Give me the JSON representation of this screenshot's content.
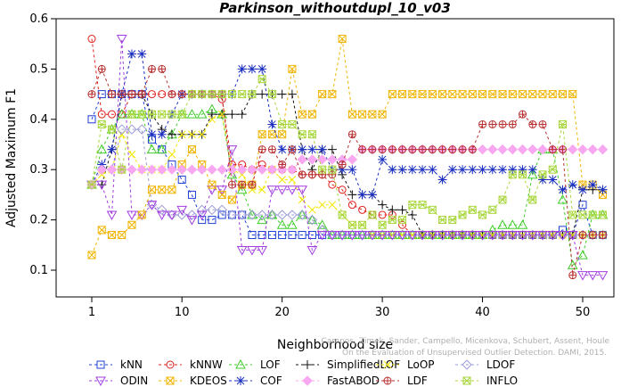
{
  "chart_data": {
    "type": "line",
    "title": "Parkinson_withoutdupl_10_v03",
    "xlabel": "Neighborhood size",
    "ylabel": "Adjusted Maximum F1",
    "xlim": [
      1,
      52
    ],
    "ylim": [
      0.075,
      0.6
    ],
    "xticks": [
      1,
      10,
      20,
      30,
      40,
      50
    ],
    "yticks": [
      0.1,
      0.2,
      0.3,
      0.4,
      0.5,
      0.6
    ],
    "grid": false,
    "legend_position": "bottom",
    "credit": "Campos, Zimek, Sander, Campello, Micenkova, Schubert, Assent, Houle\nOn the Evaluation of Unsupervised Outlier Detection. DAMI, 2015.",
    "x": [
      1,
      2,
      3,
      4,
      5,
      6,
      7,
      8,
      9,
      10,
      11,
      12,
      13,
      14,
      15,
      16,
      17,
      18,
      19,
      20,
      21,
      22,
      23,
      24,
      25,
      26,
      27,
      28,
      29,
      30,
      31,
      32,
      33,
      34,
      35,
      36,
      37,
      38,
      39,
      40,
      41,
      42,
      43,
      44,
      45,
      46,
      47,
      48,
      49,
      50,
      51,
      52
    ],
    "series": [
      {
        "name": "kNN",
        "color": "#1f3fd6",
        "marker": "square",
        "values": [
          0.4,
          0.45,
          0.45,
          0.45,
          0.45,
          0.45,
          0.36,
          0.34,
          0.31,
          0.28,
          0.25,
          0.2,
          0.2,
          0.21,
          0.21,
          0.21,
          0.17,
          0.17,
          0.17,
          0.17,
          0.17,
          0.17,
          0.17,
          0.17,
          0.17,
          0.17,
          0.17,
          0.17,
          0.17,
          0.17,
          0.17,
          0.17,
          0.17,
          0.17,
          0.17,
          0.17,
          0.17,
          0.17,
          0.17,
          0.17,
          0.17,
          0.17,
          0.17,
          0.17,
          0.17,
          0.17,
          0.17,
          0.18,
          0.17,
          0.23,
          0.17,
          0.17
        ]
      },
      {
        "name": "kNNW",
        "color": "#e0201b",
        "marker": "circle",
        "values": [
          0.56,
          0.41,
          0.41,
          0.41,
          0.45,
          0.45,
          0.45,
          0.45,
          0.45,
          0.45,
          0.45,
          0.45,
          0.45,
          0.44,
          0.31,
          0.31,
          0.3,
          0.31,
          0.3,
          0.3,
          0.3,
          0.29,
          0.29,
          0.29,
          0.27,
          0.26,
          0.23,
          0.22,
          0.21,
          0.21,
          0.21,
          0.19,
          0.17,
          0.17,
          0.17,
          0.17,
          0.17,
          0.17,
          0.17,
          0.17,
          0.17,
          0.17,
          0.17,
          0.17,
          0.17,
          0.17,
          0.17,
          0.17,
          0.17,
          0.17,
          0.17,
          0.17
        ]
      },
      {
        "name": "LOF",
        "color": "#3fcc2a",
        "marker": "triangle",
        "values": [
          0.27,
          0.34,
          0.38,
          0.41,
          0.41,
          0.41,
          0.34,
          0.34,
          0.37,
          0.41,
          0.41,
          0.41,
          0.42,
          0.41,
          0.29,
          0.26,
          0.21,
          0.2,
          0.21,
          0.19,
          0.19,
          0.21,
          0.2,
          0.19,
          0.17,
          0.17,
          0.17,
          0.17,
          0.17,
          0.17,
          0.17,
          0.17,
          0.17,
          0.17,
          0.17,
          0.17,
          0.17,
          0.17,
          0.17,
          0.17,
          0.18,
          0.19,
          0.19,
          0.19,
          0.29,
          0.34,
          0.34,
          0.24,
          0.11,
          0.13,
          0.21,
          0.21
        ]
      },
      {
        "name": "SimplifiedLOF",
        "color": "#111111",
        "marker": "plus",
        "values": [
          0.27,
          0.27,
          0.34,
          0.45,
          0.45,
          0.45,
          0.41,
          0.38,
          0.37,
          0.37,
          0.37,
          0.37,
          0.41,
          0.41,
          0.41,
          0.41,
          0.45,
          0.45,
          0.45,
          0.45,
          0.45,
          0.34,
          0.3,
          0.34,
          0.34,
          0.29,
          0.25,
          0.25,
          0.25,
          0.23,
          0.22,
          0.22,
          0.21,
          0.17,
          0.17,
          0.17,
          0.17,
          0.17,
          0.17,
          0.17,
          0.17,
          0.17,
          0.17,
          0.17,
          0.17,
          0.17,
          0.17,
          0.17,
          0.17,
          0.26,
          0.26,
          0.26
        ]
      },
      {
        "name": "LoOP",
        "color": "#f2e600",
        "marker": "x",
        "values": [
          0.27,
          0.29,
          0.3,
          0.37,
          0.33,
          0.3,
          0.3,
          0.3,
          0.33,
          0.37,
          0.37,
          0.37,
          0.4,
          0.41,
          0.3,
          0.29,
          0.26,
          0.26,
          0.3,
          0.28,
          0.28,
          0.24,
          0.22,
          0.23,
          0.23,
          0.21,
          0.19,
          0.19,
          0.17,
          0.17,
          0.17,
          0.17,
          0.17,
          0.17,
          0.17,
          0.17,
          0.17,
          0.17,
          0.17,
          0.17,
          0.17,
          0.17,
          0.17,
          0.17,
          0.17,
          0.17,
          0.17,
          0.17,
          0.17,
          0.17,
          0.17,
          0.17
        ]
      },
      {
        "name": "LDOF",
        "color": "#9a9ad8",
        "marker": "diamond",
        "values": [
          0.27,
          0.3,
          0.3,
          0.38,
          0.38,
          0.38,
          0.23,
          0.22,
          0.21,
          0.21,
          0.21,
          0.22,
          0.22,
          0.22,
          0.21,
          0.21,
          0.21,
          0.21,
          0.21,
          0.21,
          0.21,
          0.21,
          0.2,
          0.18,
          0.17,
          0.17,
          0.17,
          0.17,
          0.17,
          0.17,
          0.17,
          0.17,
          0.17,
          0.17,
          0.17,
          0.17,
          0.17,
          0.17,
          0.17,
          0.17,
          0.17,
          0.17,
          0.17,
          0.17,
          0.17,
          0.17,
          0.17,
          0.17,
          0.17,
          0.17,
          0.17,
          0.17
        ]
      },
      {
        "name": "ODIN",
        "color": "#a23de0",
        "marker": "triangle-down",
        "values": [
          0.27,
          0.27,
          0.21,
          0.56,
          0.21,
          0.21,
          0.23,
          0.21,
          0.21,
          0.22,
          0.2,
          0.21,
          0.26,
          0.26,
          0.34,
          0.14,
          0.14,
          0.14,
          0.26,
          0.26,
          0.26,
          0.26,
          0.14,
          0.17,
          0.17,
          0.17,
          0.17,
          0.17,
          0.17,
          0.17,
          0.17,
          0.17,
          0.17,
          0.17,
          0.17,
          0.17,
          0.17,
          0.17,
          0.17,
          0.17,
          0.17,
          0.17,
          0.17,
          0.17,
          0.17,
          0.17,
          0.17,
          0.17,
          0.17,
          0.09,
          0.09,
          0.09
        ]
      },
      {
        "name": "KDEOS",
        "color": "#f0b400",
        "marker": "square-x",
        "values": [
          0.13,
          0.18,
          0.17,
          0.17,
          0.19,
          0.21,
          0.26,
          0.26,
          0.26,
          0.31,
          0.34,
          0.31,
          0.27,
          0.25,
          0.24,
          0.27,
          0.27,
          0.37,
          0.37,
          0.37,
          0.5,
          0.41,
          0.41,
          0.45,
          0.45,
          0.56,
          0.41,
          0.41,
          0.41,
          0.41,
          0.45,
          0.45,
          0.45,
          0.45,
          0.45,
          0.45,
          0.45,
          0.45,
          0.45,
          0.45,
          0.45,
          0.45,
          0.45,
          0.45,
          0.45,
          0.45,
          0.45,
          0.45,
          0.45,
          0.27,
          0.27,
          0.25
        ]
      },
      {
        "name": "COF",
        "color": "#1a2fc0",
        "marker": "star",
        "values": [
          0.27,
          0.31,
          0.34,
          0.45,
          0.53,
          0.53,
          0.37,
          0.37,
          0.41,
          0.45,
          0.45,
          0.45,
          0.45,
          0.45,
          0.45,
          0.5,
          0.5,
          0.5,
          0.39,
          0.34,
          0.34,
          0.34,
          0.34,
          0.34,
          0.3,
          0.3,
          0.3,
          0.25,
          0.25,
          0.32,
          0.3,
          0.3,
          0.3,
          0.3,
          0.3,
          0.28,
          0.3,
          0.3,
          0.3,
          0.3,
          0.3,
          0.3,
          0.3,
          0.3,
          0.3,
          0.28,
          0.28,
          0.26,
          0.27,
          0.26,
          0.27,
          0.26
        ]
      },
      {
        "name": "FastABOD",
        "color": "#f7a8f0",
        "marker": "diamond-filled",
        "values": [
          0.27,
          0.3,
          0.3,
          0.3,
          0.3,
          0.3,
          0.3,
          0.3,
          0.3,
          0.3,
          0.3,
          0.3,
          0.3,
          0.3,
          0.3,
          0.3,
          0.3,
          0.3,
          0.3,
          0.3,
          0.3,
          0.32,
          0.32,
          0.32,
          0.32,
          0.32,
          0.32,
          0.34,
          0.34,
          0.34,
          0.34,
          0.34,
          0.34,
          0.34,
          0.34,
          0.34,
          0.34,
          0.34,
          0.34,
          0.34,
          0.34,
          0.34,
          0.34,
          0.34,
          0.34,
          0.34,
          0.34,
          0.34,
          0.34,
          0.34,
          0.34,
          0.34
        ]
      },
      {
        "name": "LDF",
        "color": "#b83030",
        "marker": "circle-plus",
        "values": [
          0.45,
          0.5,
          0.45,
          0.45,
          0.45,
          0.45,
          0.5,
          0.5,
          0.45,
          0.45,
          0.45,
          0.45,
          0.45,
          0.45,
          0.27,
          0.27,
          0.27,
          0.34,
          0.34,
          0.31,
          0.34,
          0.29,
          0.29,
          0.29,
          0.29,
          0.31,
          0.37,
          0.34,
          0.34,
          0.34,
          0.34,
          0.34,
          0.34,
          0.34,
          0.34,
          0.34,
          0.34,
          0.34,
          0.34,
          0.39,
          0.39,
          0.39,
          0.39,
          0.41,
          0.39,
          0.39,
          0.34,
          0.34,
          0.09,
          0.17,
          0.17,
          0.17
        ]
      },
      {
        "name": "INFLO",
        "color": "#a8d63a",
        "marker": "star-box",
        "values": [
          0.27,
          0.39,
          0.38,
          0.3,
          0.41,
          0.41,
          0.41,
          0.41,
          0.41,
          0.41,
          0.45,
          0.45,
          0.45,
          0.45,
          0.45,
          0.45,
          0.45,
          0.48,
          0.45,
          0.39,
          0.39,
          0.37,
          0.37,
          0.3,
          0.3,
          0.21,
          0.19,
          0.19,
          0.21,
          0.19,
          0.2,
          0.2,
          0.23,
          0.23,
          0.22,
          0.2,
          0.2,
          0.21,
          0.22,
          0.21,
          0.22,
          0.24,
          0.29,
          0.29,
          0.24,
          0.29,
          0.3,
          0.39,
          0.21,
          0.21,
          0.21,
          0.21
        ]
      }
    ]
  }
}
